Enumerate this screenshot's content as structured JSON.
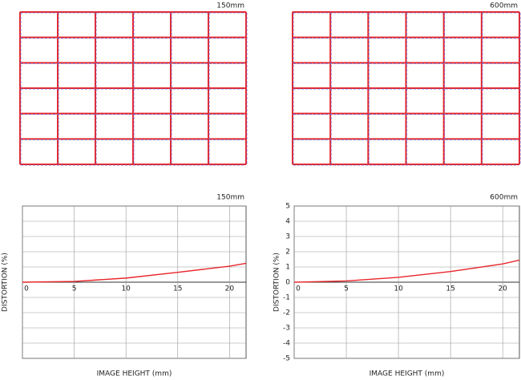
{
  "chart_data": [
    {
      "type": "grid",
      "subtitle": "150mm",
      "color": "#e8262a",
      "reference_color": "#6a6ad8"
    },
    {
      "type": "grid",
      "subtitle": "600mm",
      "color": "#e8262a",
      "reference_color": "#6a6ad8"
    },
    {
      "type": "line",
      "subtitle": "150mm",
      "xlabel": "IMAGE HEIGHT (mm)",
      "ylabel": "DISTORTION (%)",
      "x": [
        0,
        5,
        10,
        15,
        20,
        21.6
      ],
      "values": [
        0,
        0.05,
        0.27,
        0.65,
        1.05,
        1.24
      ],
      "color": "#e8262a",
      "xlim": [
        0,
        21.6
      ],
      "ylim": [
        -5,
        5
      ],
      "xticks": [
        0,
        5,
        10,
        15,
        20
      ],
      "yticks": [
        -5,
        -4,
        -3,
        -2,
        -1,
        0,
        1,
        2,
        3,
        4,
        5
      ],
      "ytick_labels": false,
      "grid": true
    },
    {
      "type": "line",
      "subtitle": "600mm",
      "xlabel": "IMAGE HEIGHT (mm)",
      "ylabel": "DISTORTION (%)",
      "x": [
        0,
        5,
        10,
        15,
        20,
        21.6
      ],
      "values": [
        0,
        0.08,
        0.32,
        0.7,
        1.2,
        1.45
      ],
      "color": "#e8262a",
      "xlim": [
        0,
        21.6
      ],
      "ylim": [
        -5,
        5
      ],
      "xticks": [
        0,
        5,
        10,
        15,
        20
      ],
      "yticks": [
        -5,
        -4,
        -3,
        -2,
        -1,
        0,
        1,
        2,
        3,
        4,
        5
      ],
      "ytick_labels": true,
      "grid": true
    }
  ]
}
